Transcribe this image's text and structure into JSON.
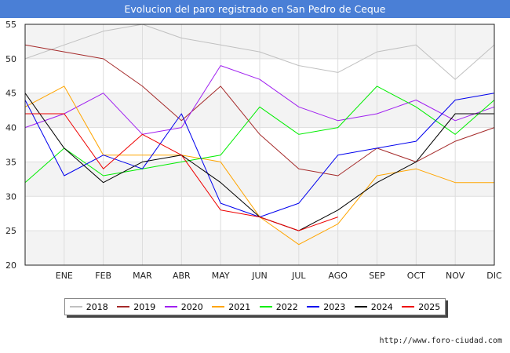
{
  "page": {
    "footer_url": "http://www.foro-ciudad.com"
  },
  "chart_data": {
    "type": "line",
    "title": "Evolucion del paro registrado en San Pedro de Ceque",
    "xlabel": "",
    "ylabel": "",
    "categories": [
      "",
      "ENE",
      "FEB",
      "MAR",
      "ABR",
      "MAY",
      "JUN",
      "JUL",
      "AGO",
      "SEP",
      "OCT",
      "NOV",
      "DIC"
    ],
    "ylim": [
      20,
      55
    ],
    "yticks": [
      20,
      25,
      30,
      35,
      40,
      45,
      50,
      55
    ],
    "grid": true,
    "legend_position": "bottom",
    "series": [
      {
        "name": "2018",
        "color": "#c0c0c0",
        "values": [
          50,
          52,
          54,
          55,
          53,
          52,
          51,
          49,
          48,
          51,
          52,
          47,
          52
        ]
      },
      {
        "name": "2019",
        "color": "#a52a2a",
        "values": [
          52,
          51,
          50,
          46,
          41,
          46,
          39,
          34,
          33,
          37,
          35,
          38,
          40
        ]
      },
      {
        "name": "2020",
        "color": "#a020f0",
        "values": [
          40,
          42,
          45,
          39,
          40,
          49,
          47,
          43,
          41,
          42,
          44,
          41,
          43
        ]
      },
      {
        "name": "2021",
        "color": "#ffa500",
        "values": [
          43,
          46,
          36,
          36,
          36,
          35,
          27,
          23,
          26,
          33,
          34,
          32,
          32
        ]
      },
      {
        "name": "2022",
        "color": "#00ee00",
        "values": [
          32,
          37,
          33,
          34,
          35,
          36,
          43,
          39,
          40,
          46,
          43,
          39,
          44
        ]
      },
      {
        "name": "2023",
        "color": "#0000ee",
        "values": [
          44,
          33,
          36,
          34,
          42,
          29,
          27,
          29,
          36,
          37,
          38,
          44,
          45
        ]
      },
      {
        "name": "2024",
        "color": "#000000",
        "values": [
          45,
          37,
          32,
          35,
          36,
          32,
          27,
          25,
          28,
          32,
          35,
          42,
          42
        ]
      },
      {
        "name": "2025",
        "color": "#ee0000",
        "values": [
          42,
          42,
          34,
          39,
          36,
          28,
          27,
          25,
          27,
          null,
          null,
          null,
          null
        ]
      }
    ]
  }
}
